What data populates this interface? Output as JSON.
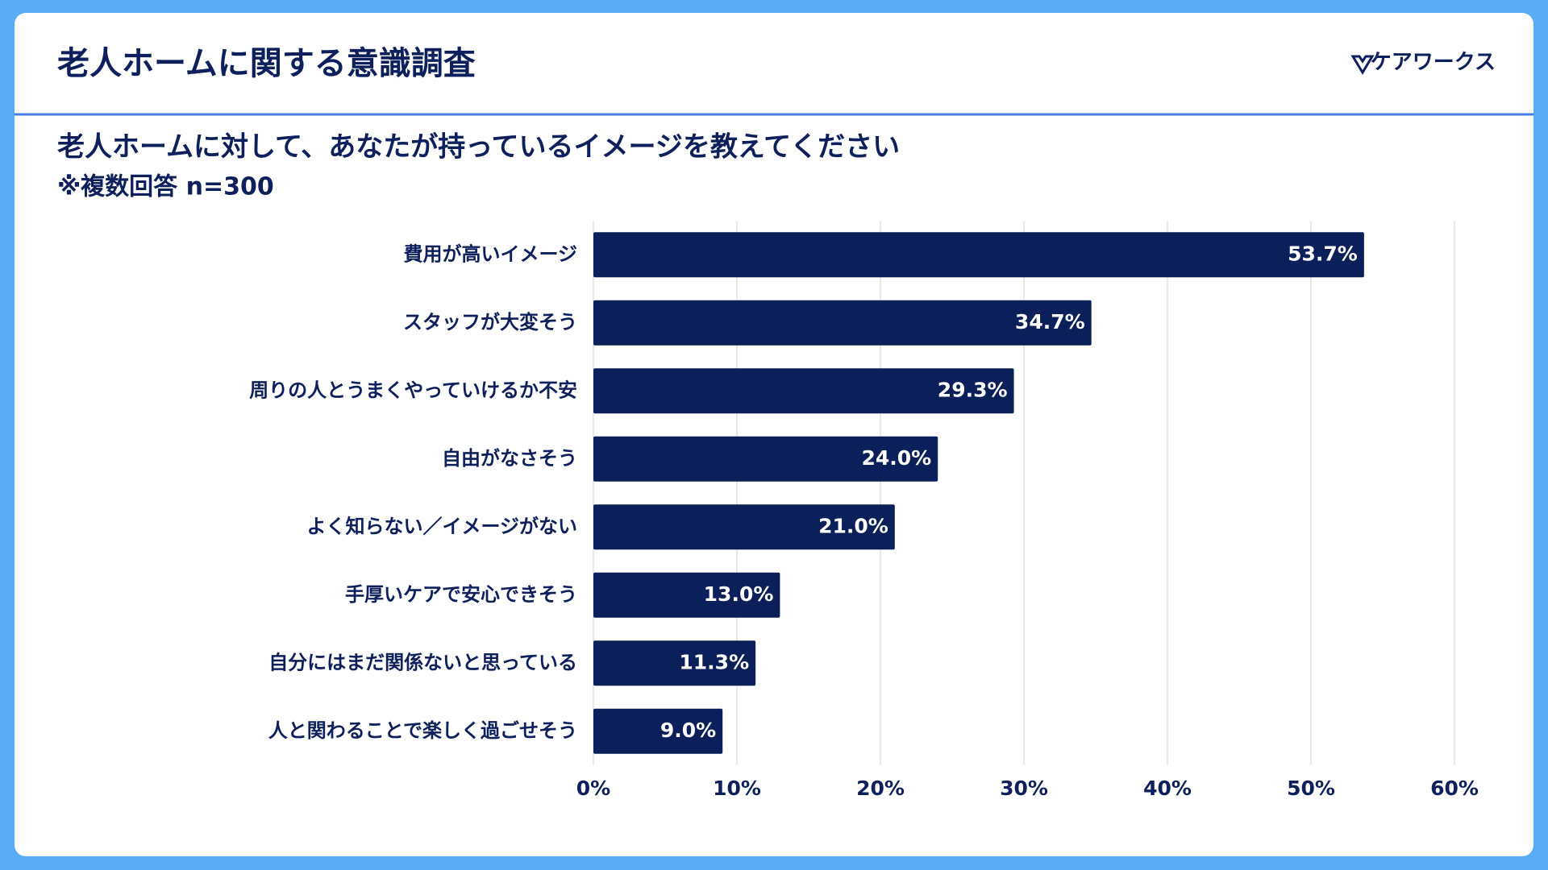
{
  "header": {
    "title": "老人ホームに関する意識調査",
    "brand": "ケアワークス"
  },
  "chart_data": {
    "type": "bar",
    "orientation": "horizontal",
    "title": "老人ホームに対して、あなたが持っているイメージを教えてください",
    "subtitle": "※複数回答 n=300",
    "categories": [
      "費用が高いイメージ",
      "スタッフが大変そう",
      "周りの人とうまくやっていけるか不安",
      "自由がなさそう",
      "よく知らない／イメージがない",
      "手厚いケアで安心できそう",
      "自分にはまだ関係ないと思っている",
      "人と関わることで楽しく過ごせそう"
    ],
    "values": [
      53.7,
      34.7,
      29.3,
      24.0,
      21.0,
      13.0,
      11.3,
      9.0
    ],
    "value_labels": [
      "53.7%",
      "34.7%",
      "29.3%",
      "24.0%",
      "21.0%",
      "13.0%",
      "11.3%",
      "9.0%"
    ],
    "color": "#0b1f5b",
    "xlim": [
      0,
      60
    ],
    "xticks": [
      {
        "value": 0,
        "label": "0%"
      },
      {
        "value": 10,
        "label": "10%"
      },
      {
        "value": 20,
        "label": "20%"
      },
      {
        "value": 30,
        "label": "30%"
      },
      {
        "value": 40,
        "label": "40%"
      },
      {
        "value": 50,
        "label": "50%"
      },
      {
        "value": 60,
        "label": "60%"
      }
    ],
    "grid": true
  }
}
